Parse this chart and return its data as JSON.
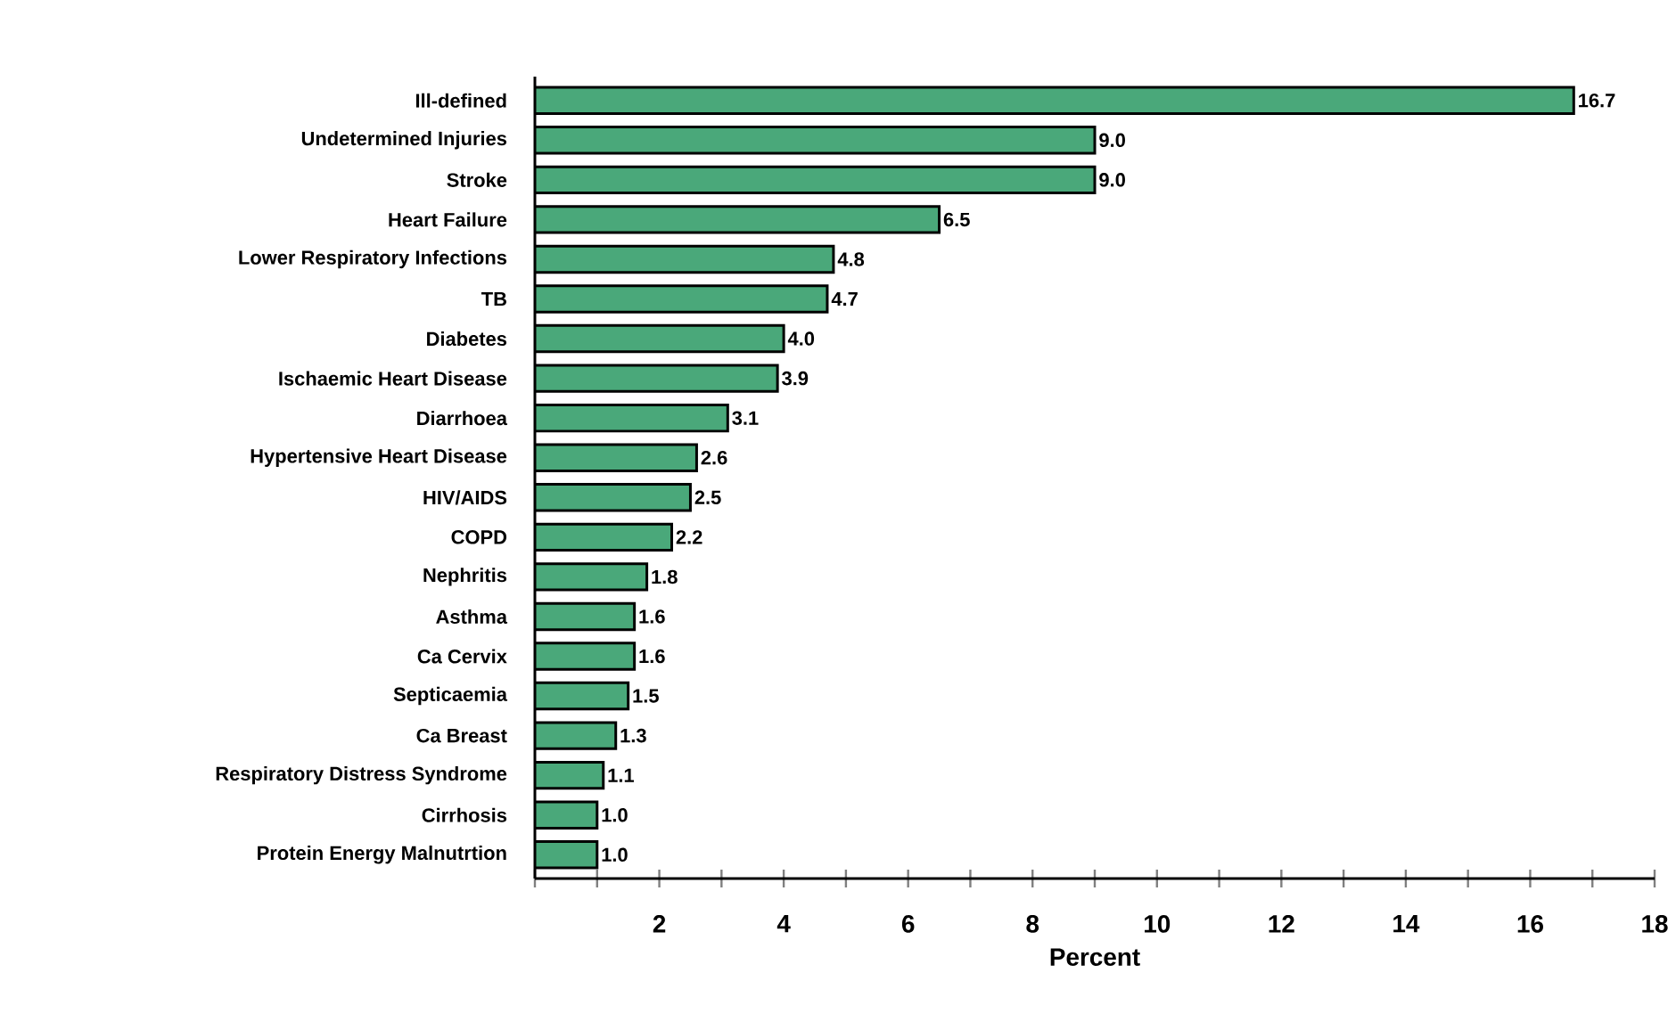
{
  "chart_data": {
    "type": "bar",
    "orientation": "horizontal",
    "xlabel": "Percent",
    "categories": [
      "Ill-defined",
      "Undetermined Injuries",
      "Stroke",
      "Heart Failure",
      "Lower Respiratory Infections",
      "TB",
      "Diabetes",
      "Ischaemic Heart Disease",
      "Diarrhoea",
      "Hypertensive Heart Disease",
      "HIV/AIDS",
      "COPD",
      "Nephritis",
      "Asthma",
      "Ca Cervix",
      "Septicaemia",
      "Ca Breast",
      "Respiratory Distress Syndrome",
      "Cirrhosis",
      "Protein Energy Malnutrtion"
    ],
    "values": [
      16.7,
      9.0,
      9.0,
      6.5,
      4.8,
      4.7,
      4.0,
      3.9,
      3.1,
      2.6,
      2.5,
      2.2,
      1.8,
      1.6,
      1.6,
      1.5,
      1.3,
      1.1,
      1.0,
      1.0
    ],
    "value_labels": [
      "16.7",
      "9.0",
      "9.0",
      "6.5",
      "4.8",
      "4.7",
      "4.0",
      "3.9",
      "3.1",
      "2.6",
      "2.5",
      "2.2",
      "1.8",
      "1.6",
      "1.6",
      "1.5",
      "1.3",
      "1.1",
      "1.0",
      "1.0"
    ],
    "color": "#4aa87a",
    "xlim": [
      0,
      18
    ],
    "xticks": [
      {
        "value": 0,
        "label": null
      },
      {
        "value": 1,
        "label": null
      },
      2,
      {
        "value": 3,
        "label": null
      },
      4,
      {
        "value": 5,
        "label": null
      },
      6,
      {
        "value": 7,
        "label": null
      },
      8,
      {
        "value": 9,
        "label": null
      },
      10,
      {
        "value": 11,
        "label": null
      },
      12,
      {
        "value": 13,
        "label": null
      },
      14,
      {
        "value": 15,
        "label": null
      },
      16,
      {
        "value": 17,
        "label": null
      },
      18
    ],
    "grid": false
  }
}
